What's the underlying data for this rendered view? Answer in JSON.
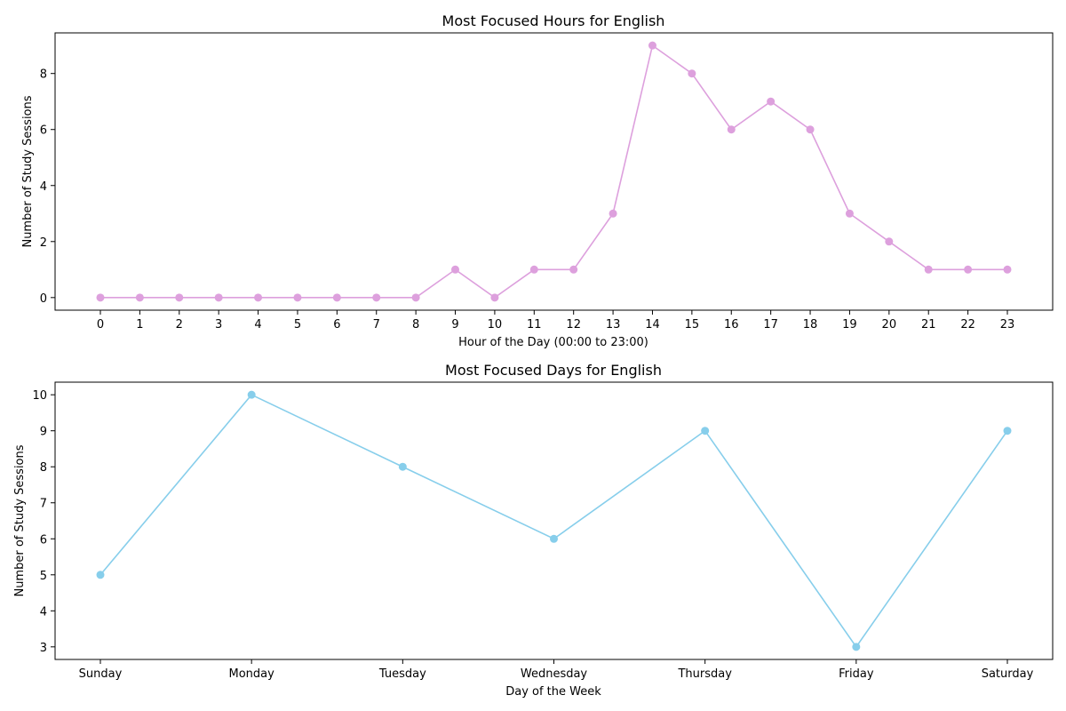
{
  "chart_data": [
    {
      "type": "line",
      "title": "Most Focused Hours for English",
      "xlabel": "Hour of the Day (00:00 to 23:00)",
      "ylabel": "Number of Study Sessions",
      "categories": [
        "0",
        "1",
        "2",
        "3",
        "4",
        "5",
        "6",
        "7",
        "8",
        "9",
        "10",
        "11",
        "12",
        "13",
        "14",
        "15",
        "16",
        "17",
        "18",
        "19",
        "20",
        "21",
        "22",
        "23"
      ],
      "series": [
        {
          "values": [
            0,
            0,
            0,
            0,
            0,
            0,
            0,
            0,
            0,
            1,
            0,
            1,
            1,
            3,
            9,
            8,
            6,
            7,
            6,
            3,
            2,
            1,
            1,
            1
          ],
          "color": "#dda0dd"
        }
      ],
      "yticks": [
        0,
        2,
        4,
        6,
        8
      ],
      "ylim": [
        -0.45,
        9.45
      ],
      "grid": false
    },
    {
      "type": "line",
      "title": "Most Focused Days for English",
      "xlabel": "Day of the Week",
      "ylabel": "Number of Study Sessions",
      "categories": [
        "Sunday",
        "Monday",
        "Tuesday",
        "Wednesday",
        "Thursday",
        "Friday",
        "Saturday"
      ],
      "series": [
        {
          "values": [
            5,
            10,
            8,
            6,
            9,
            3,
            9
          ],
          "color": "#87ceeb"
        }
      ],
      "yticks": [
        3,
        4,
        5,
        6,
        7,
        8,
        9,
        10
      ],
      "ylim": [
        2.65,
        10.35
      ],
      "grid": false
    }
  ]
}
